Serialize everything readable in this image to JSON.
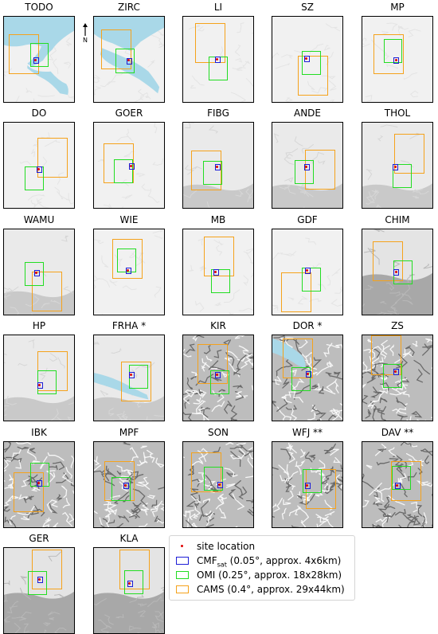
{
  "north_label": "N",
  "colors": {
    "cmf": "#1c1cd6",
    "omi": "#22dd22",
    "cams": "#f5a21b",
    "site": "#e00000",
    "water": "#a9d8e8"
  },
  "panels": [
    {
      "name": "TODO",
      "terrain": "flat",
      "water": "todo"
    },
    {
      "name": "ZIRC",
      "terrain": "flat",
      "water": "zirc"
    },
    {
      "name": "LI",
      "terrain": "flat"
    },
    {
      "name": "SZ",
      "terrain": "flat"
    },
    {
      "name": "MP",
      "terrain": "flat"
    },
    {
      "name": "DO",
      "terrain": "flat"
    },
    {
      "name": "GOER",
      "terrain": "flat"
    },
    {
      "name": "FIBG",
      "terrain": "low"
    },
    {
      "name": "ANDE",
      "terrain": "low"
    },
    {
      "name": "THOL",
      "terrain": "low"
    },
    {
      "name": "WAMU",
      "terrain": "low"
    },
    {
      "name": "WIE",
      "terrain": "flat"
    },
    {
      "name": "MB",
      "terrain": "flat"
    },
    {
      "name": "GDF",
      "terrain": "flat"
    },
    {
      "name": "CHIM",
      "terrain": "mid"
    },
    {
      "name": "HP",
      "terrain": "low"
    },
    {
      "name": "FRHA *",
      "terrain": "low",
      "water": "frha"
    },
    {
      "name": "KIR",
      "terrain": "high"
    },
    {
      "name": "DOR *",
      "terrain": "high",
      "water": "dor"
    },
    {
      "name": "ZS",
      "terrain": "high"
    },
    {
      "name": "IBK",
      "terrain": "high"
    },
    {
      "name": "MPF",
      "terrain": "high"
    },
    {
      "name": "SON",
      "terrain": "high"
    },
    {
      "name": "WFJ **",
      "terrain": "high"
    },
    {
      "name": "DAV **",
      "terrain": "high"
    },
    {
      "name": "GER",
      "terrain": "mid"
    },
    {
      "name": "KLA",
      "terrain": "mid"
    }
  ],
  "legend": {
    "site": "site location",
    "cmf_main": "CMF",
    "cmf_sub": "sat",
    "cmf_rest": " (0.05°, approx. 4x6km)",
    "omi": "OMI (0.25°, approx. 18x28km)",
    "cams": "CAMS (0.4°, approx. 29x44km)"
  }
}
